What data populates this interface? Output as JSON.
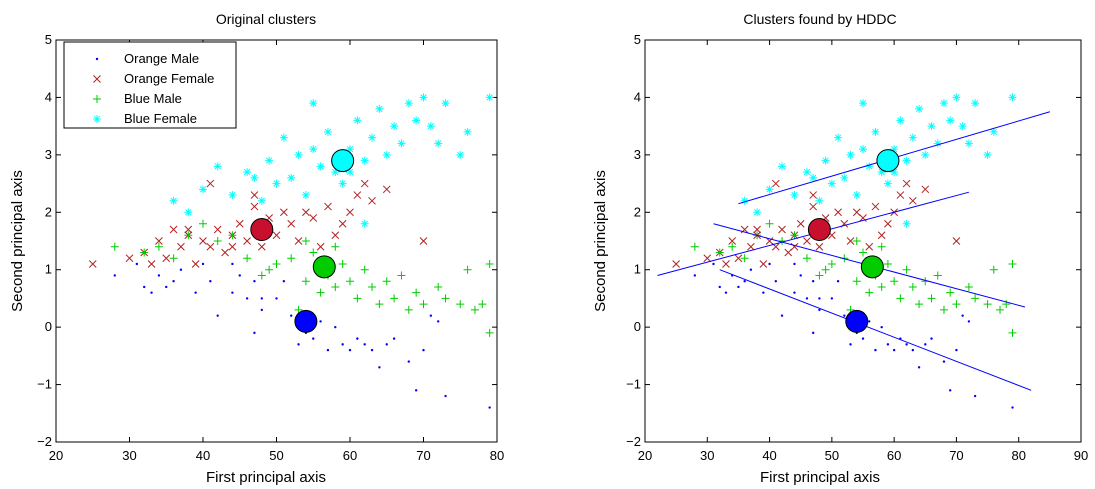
{
  "chart_data": [
    {
      "type": "scatter",
      "title": "Original clusters",
      "xlabel": "First principal axis",
      "ylabel": "Second principal axis",
      "xlim": [
        20,
        80
      ],
      "ylim": [
        -2,
        5
      ],
      "xticks": [
        20,
        30,
        40,
        50,
        60,
        70,
        80
      ],
      "yticks": [
        -2,
        -1,
        0,
        1,
        2,
        3,
        4,
        5
      ],
      "grid": false,
      "legend": "top-left",
      "series": [
        {
          "name": "Orange Male",
          "marker": "dot",
          "color": "#0000ff",
          "points": [
            [
              28,
              0.9
            ],
            [
              31,
              1.1
            ],
            [
              32,
              0.7
            ],
            [
              33,
              0.6
            ],
            [
              34,
              0.9
            ],
            [
              35,
              0.7
            ],
            [
              37,
              1.0
            ],
            [
              39,
              0.6
            ],
            [
              40,
              1.1
            ],
            [
              41,
              0.8
            ],
            [
              42,
              0.2
            ],
            [
              44,
              0.6
            ],
            [
              45,
              0.9
            ],
            [
              46,
              0.5
            ],
            [
              47,
              0.8
            ],
            [
              47,
              -0.1
            ],
            [
              48,
              0.3
            ],
            [
              48,
              0.5
            ],
            [
              50,
              0.5
            ],
            [
              51,
              0.8
            ],
            [
              52,
              0.2
            ],
            [
              53,
              -0.3
            ],
            [
              54,
              -0.1
            ],
            [
              55,
              -0.2
            ],
            [
              56,
              0.1
            ],
            [
              57,
              -0.4
            ],
            [
              58,
              0.0
            ],
            [
              59,
              -0.3
            ],
            [
              60,
              -0.4
            ],
            [
              61,
              -0.2
            ],
            [
              62,
              -0.3
            ],
            [
              63,
              -0.4
            ],
            [
              64,
              -0.7
            ],
            [
              65,
              -0.3
            ],
            [
              66,
              -0.2
            ],
            [
              68,
              -0.6
            ],
            [
              69,
              -1.1
            ],
            [
              70,
              -0.4
            ],
            [
              71,
              0.2
            ],
            [
              72,
              0.1
            ],
            [
              73,
              -1.2
            ],
            [
              79,
              -1.4
            ],
            [
              44,
              1.1
            ],
            [
              36,
              0.8
            ]
          ]
        },
        {
          "name": "Orange Female",
          "marker": "x",
          "color": "#b22222",
          "points": [
            [
              25,
              1.1
            ],
            [
              30,
              1.2
            ],
            [
              32,
              1.3
            ],
            [
              33,
              1.1
            ],
            [
              34,
              1.5
            ],
            [
              35,
              1.2
            ],
            [
              36,
              1.7
            ],
            [
              37,
              1.4
            ],
            [
              38,
              1.6
            ],
            [
              39,
              1.1
            ],
            [
              40,
              1.5
            ],
            [
              41,
              1.4
            ],
            [
              41,
              2.5
            ],
            [
              42,
              1.7
            ],
            [
              43,
              1.3
            ],
            [
              44,
              1.6
            ],
            [
              45,
              1.8
            ],
            [
              46,
              1.5
            ],
            [
              47,
              2.1
            ],
            [
              47,
              2.3
            ],
            [
              48,
              1.4
            ],
            [
              49,
              1.9
            ],
            [
              50,
              1.6
            ],
            [
              51,
              2.0
            ],
            [
              52,
              1.8
            ],
            [
              53,
              1.5
            ],
            [
              54,
              2.0
            ],
            [
              55,
              1.9
            ],
            [
              56,
              1.4
            ],
            [
              57,
              2.1
            ],
            [
              58,
              1.6
            ],
            [
              59,
              1.8
            ],
            [
              60,
              2.0
            ],
            [
              61,
              2.3
            ],
            [
              62,
              2.5
            ],
            [
              63,
              2.2
            ],
            [
              65,
              2.4
            ],
            [
              70,
              1.5
            ],
            [
              38,
              1.7
            ],
            [
              44,
              1.4
            ]
          ]
        },
        {
          "name": "Blue Male",
          "marker": "plus",
          "color": "#00cc00",
          "points": [
            [
              28,
              1.4
            ],
            [
              32,
              1.3
            ],
            [
              34,
              1.4
            ],
            [
              36,
              1.2
            ],
            [
              38,
              1.6
            ],
            [
              40,
              1.8
            ],
            [
              42,
              1.5
            ],
            [
              44,
              1.6
            ],
            [
              46,
              1.2
            ],
            [
              48,
              0.9
            ],
            [
              49,
              1.0
            ],
            [
              50,
              1.1
            ],
            [
              52,
              1.2
            ],
            [
              53,
              0.3
            ],
            [
              54,
              0.8
            ],
            [
              55,
              1.3
            ],
            [
              56,
              0.6
            ],
            [
              57,
              0.9
            ],
            [
              58,
              0.7
            ],
            [
              59,
              1.1
            ],
            [
              60,
              0.8
            ],
            [
              61,
              0.5
            ],
            [
              62,
              1.0
            ],
            [
              63,
              0.7
            ],
            [
              64,
              0.4
            ],
            [
              65,
              0.8
            ],
            [
              66,
              0.5
            ],
            [
              67,
              0.9
            ],
            [
              68,
              0.3
            ],
            [
              69,
              0.6
            ],
            [
              70,
              0.4
            ],
            [
              72,
              0.7
            ],
            [
              73,
              0.5
            ],
            [
              75,
              0.4
            ],
            [
              76,
              1.0
            ],
            [
              77,
              0.3
            ],
            [
              78,
              0.4
            ],
            [
              79,
              1.1
            ],
            [
              79,
              -0.1
            ],
            [
              54,
              1.5
            ],
            [
              58,
              1.4
            ]
          ]
        },
        {
          "name": "Blue Female",
          "marker": "star",
          "color": "#00ffff",
          "points": [
            [
              36,
              2.2
            ],
            [
              38,
              2.0
            ],
            [
              40,
              2.4
            ],
            [
              42,
              2.8
            ],
            [
              44,
              2.3
            ],
            [
              46,
              2.7
            ],
            [
              47,
              2.6
            ],
            [
              48,
              2.2
            ],
            [
              49,
              2.9
            ],
            [
              50,
              2.5
            ],
            [
              51,
              3.3
            ],
            [
              52,
              2.6
            ],
            [
              53,
              3.0
            ],
            [
              54,
              2.3
            ],
            [
              55,
              3.1
            ],
            [
              56,
              2.8
            ],
            [
              57,
              3.4
            ],
            [
              58,
              2.7
            ],
            [
              59,
              2.5
            ],
            [
              60,
              3.1
            ],
            [
              61,
              3.6
            ],
            [
              62,
              2.9
            ],
            [
              63,
              3.3
            ],
            [
              64,
              3.8
            ],
            [
              65,
              3.0
            ],
            [
              66,
              3.5
            ],
            [
              67,
              3.2
            ],
            [
              68,
              3.9
            ],
            [
              69,
              3.6
            ],
            [
              70,
              4.0
            ],
            [
              71,
              3.5
            ],
            [
              72,
              3.2
            ],
            [
              73,
              3.9
            ],
            [
              75,
              3.0
            ],
            [
              76,
              3.4
            ],
            [
              79,
              4.0
            ],
            [
              62,
              1.8
            ],
            [
              55,
              3.9
            ],
            [
              60,
              2.7
            ]
          ]
        }
      ],
      "centers": [
        {
          "x": 54,
          "y": 0.1,
          "color": "#0000ff"
        },
        {
          "x": 48,
          "y": 1.7,
          "color": "#c8102e"
        },
        {
          "x": 56.5,
          "y": 1.05,
          "color": "#00cc00"
        },
        {
          "x": 59,
          "y": 2.9,
          "color": "#00ffff"
        }
      ]
    },
    {
      "type": "scatter",
      "title": "Clusters found by HDDC",
      "xlabel": "First principal axis",
      "ylabel": "Second principal axis",
      "xlim": [
        20,
        90
      ],
      "ylim": [
        -2,
        5
      ],
      "xticks": [
        20,
        30,
        40,
        50,
        60,
        70,
        80,
        90
      ],
      "yticks": [
        -2,
        -1,
        0,
        1,
        2,
        3,
        4,
        5
      ],
      "grid": false,
      "series": [
        {
          "marker": "dot",
          "color": "#0000ff",
          "same_points_as": 0
        },
        {
          "marker": "x",
          "color": "#b22222",
          "same_points_as": 1
        },
        {
          "marker": "plus",
          "color": "#00cc00",
          "same_points_as": 2
        },
        {
          "marker": "star",
          "color": "#00ffff",
          "same_points_as": 3
        }
      ],
      "centers": [
        {
          "x": 54,
          "y": 0.1,
          "color": "#0000ff"
        },
        {
          "x": 48,
          "y": 1.7,
          "color": "#c8102e"
        },
        {
          "x": 56.5,
          "y": 1.05,
          "color": "#00cc00"
        },
        {
          "x": 59,
          "y": 2.9,
          "color": "#00ffff"
        }
      ],
      "lines": [
        {
          "x1": 35,
          "y1": 2.15,
          "x2": 85,
          "y2": 3.75,
          "color": "#0000ff"
        },
        {
          "x1": 22,
          "y1": 0.9,
          "x2": 72,
          "y2": 2.35,
          "color": "#0000ff"
        },
        {
          "x1": 31,
          "y1": 1.8,
          "x2": 81,
          "y2": 0.35,
          "color": "#0000ff"
        },
        {
          "x1": 32,
          "y1": 1.0,
          "x2": 82,
          "y2": -1.1,
          "color": "#0000ff"
        }
      ]
    }
  ]
}
